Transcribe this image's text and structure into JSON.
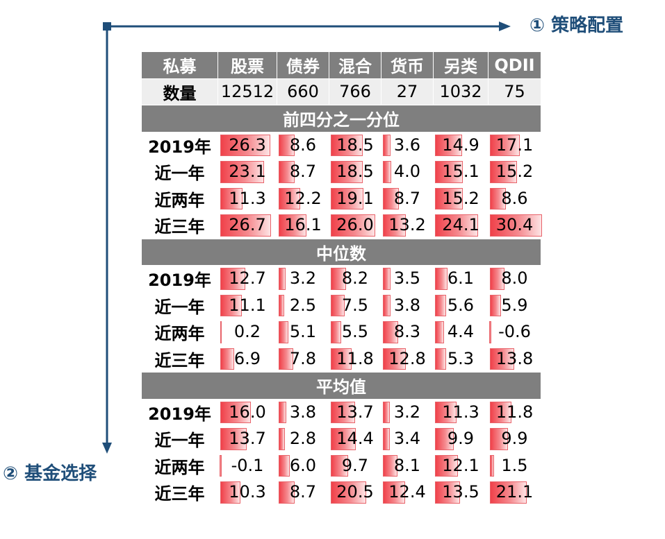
{
  "labels": {
    "strategy": "① 策略配置",
    "fund": "② 基金选择"
  },
  "colors": {
    "accent": "#1f4e79",
    "header_bg": "#7f7f7f",
    "bar": "#f0414a"
  },
  "chart_data": {
    "type": "table",
    "corner_label": "私募",
    "columns": [
      "股票",
      "债券",
      "混合",
      "货币",
      "另类",
      "QDII"
    ],
    "count_label": "数量",
    "counts": [
      "12512",
      "660",
      "766",
      "27",
      "1032",
      "75"
    ],
    "bar_scale": [
      -1,
      30.4
    ],
    "sections": [
      {
        "title": "前四分之一分位",
        "rows": [
          {
            "label": "2019年",
            "values": [
              26.3,
              8.6,
              18.5,
              3.6,
              14.9,
              17.1
            ]
          },
          {
            "label": "近一年",
            "values": [
              23.1,
              8.7,
              18.5,
              4.0,
              15.1,
              15.2
            ]
          },
          {
            "label": "近两年",
            "values": [
              11.3,
              12.2,
              19.1,
              8.7,
              15.2,
              8.6
            ]
          },
          {
            "label": "近三年",
            "values": [
              26.7,
              16.1,
              26.0,
              13.2,
              24.1,
              30.4
            ]
          }
        ]
      },
      {
        "title": "中位数",
        "rows": [
          {
            "label": "2019年",
            "values": [
              12.7,
              3.2,
              8.2,
              3.5,
              6.1,
              8.0
            ]
          },
          {
            "label": "近一年",
            "values": [
              11.1,
              2.5,
              7.5,
              3.8,
              5.6,
              5.9
            ]
          },
          {
            "label": "近两年",
            "values": [
              0.2,
              5.1,
              5.5,
              8.3,
              4.4,
              -0.6
            ]
          },
          {
            "label": "近三年",
            "values": [
              6.9,
              7.8,
              11.8,
              12.8,
              5.3,
              13.8
            ]
          }
        ]
      },
      {
        "title": "平均值",
        "rows": [
          {
            "label": "2019年",
            "values": [
              16.0,
              3.8,
              13.7,
              3.2,
              11.3,
              11.8
            ]
          },
          {
            "label": "近一年",
            "values": [
              13.7,
              2.8,
              14.4,
              3.4,
              9.9,
              9.9
            ]
          },
          {
            "label": "近两年",
            "values": [
              -0.1,
              6.0,
              9.7,
              8.1,
              12.1,
              1.5
            ]
          },
          {
            "label": "近三年",
            "values": [
              10.3,
              8.7,
              20.5,
              12.4,
              13.5,
              21.1
            ]
          }
        ]
      }
    ]
  }
}
